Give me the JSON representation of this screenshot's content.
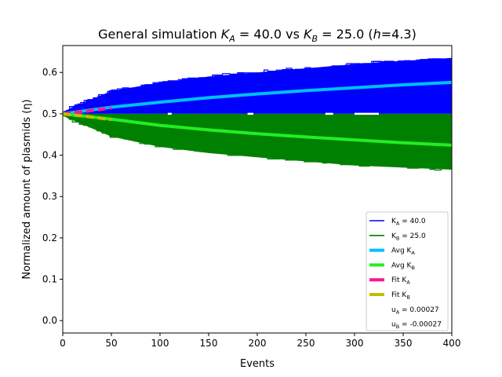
{
  "chart_data": {
    "type": "line",
    "title": "General simulation K_A = 40.0 vs K_B = 25.0 (h=4.3)",
    "title_parts": {
      "prefix": "General simulation ",
      "ka_label": "K",
      "ka_sub": "A",
      "ka_value": " = 40.0 vs ",
      "kb_label": "K",
      "kb_sub": "B",
      "kb_value": " = 25.0 (",
      "h_label": "h",
      "h_value": "=4.3)"
    },
    "xlabel": "Events",
    "ylabel": "Normalized amount of plasmids (η)",
    "xlim": [
      0,
      400
    ],
    "ylim": [
      -0.03,
      0.665
    ],
    "xticks": [
      0,
      50,
      100,
      150,
      200,
      250,
      300,
      350,
      400
    ],
    "yticks": [
      0.0,
      0.1,
      0.2,
      0.3,
      0.4,
      0.5,
      0.6
    ],
    "ytick_labels": [
      "0.0",
      "0.1",
      "0.2",
      "0.3",
      "0.4",
      "0.5",
      "0.6"
    ],
    "grid": false,
    "legend_position": "lower-right",
    "colors": {
      "ka_traces": "#0000ff",
      "kb_traces": "#008000",
      "avg_ka": "#00bfff",
      "avg_kb": "#22ee22",
      "fit_ka": "#ff1493",
      "fit_kb": "#bfbf00"
    },
    "series": [
      {
        "name": "K_A = 40.0",
        "kind": "trace-band",
        "x": [
          0,
          50,
          100,
          150,
          200,
          250,
          300,
          350,
          400
        ],
        "upper": [
          0.505,
          0.555,
          0.575,
          0.59,
          0.6,
          0.61,
          0.62,
          0.628,
          0.635
        ],
        "lower": [
          0.5,
          0.5,
          0.5,
          0.5,
          0.5,
          0.5,
          0.5,
          0.5,
          0.5
        ]
      },
      {
        "name": "K_B = 25.0",
        "kind": "trace-band",
        "x": [
          0,
          50,
          100,
          150,
          200,
          250,
          300,
          350,
          400
        ],
        "upper": [
          0.5,
          0.5,
          0.5,
          0.5,
          0.5,
          0.5,
          0.5,
          0.5,
          0.5
        ],
        "lower": [
          0.495,
          0.445,
          0.42,
          0.405,
          0.395,
          0.385,
          0.375,
          0.37,
          0.365
        ]
      },
      {
        "name": "Avg K_A",
        "kind": "line",
        "x": [
          0,
          50,
          100,
          150,
          200,
          250,
          300,
          350,
          400
        ],
        "values": [
          0.5,
          0.516,
          0.528,
          0.539,
          0.548,
          0.556,
          0.563,
          0.57,
          0.576
        ]
      },
      {
        "name": "Avg K_B",
        "kind": "line",
        "x": [
          0,
          50,
          100,
          150,
          200,
          250,
          300,
          350,
          400
        ],
        "values": [
          0.5,
          0.487,
          0.472,
          0.461,
          0.452,
          0.444,
          0.437,
          0.43,
          0.424
        ]
      },
      {
        "name": "Fit K_A",
        "kind": "dashed",
        "x": [
          0,
          10,
          20,
          30,
          40,
          50
        ],
        "values": [
          0.5,
          0.503,
          0.505,
          0.508,
          0.511,
          0.514
        ]
      },
      {
        "name": "Fit K_B",
        "kind": "dashed",
        "x": [
          0,
          10,
          20,
          30,
          40,
          50
        ],
        "values": [
          0.5,
          0.497,
          0.495,
          0.492,
          0.489,
          0.486
        ]
      }
    ],
    "legend": [
      {
        "key": "ka",
        "label_main": "K",
        "label_sub": "A",
        "label_rest": " = 40.0",
        "style": "thin",
        "color": "#0000ff"
      },
      {
        "key": "kb",
        "label_main": "K",
        "label_sub": "B",
        "label_rest": " = 25.0",
        "style": "thin",
        "color": "#008000"
      },
      {
        "key": "avg_ka",
        "label_main": "Avg K",
        "label_sub": "A",
        "label_rest": "",
        "style": "thick",
        "color": "#00bfff"
      },
      {
        "key": "avg_kb",
        "label_main": "Avg K",
        "label_sub": "B",
        "label_rest": "",
        "style": "thick",
        "color": "#22ee22"
      },
      {
        "key": "fit_ka",
        "label_main": "Fit K",
        "label_sub": "A",
        "label_rest": "",
        "style": "thick",
        "color": "#ff1493"
      },
      {
        "key": "fit_kb",
        "label_main": "Fit K",
        "label_sub": "B",
        "label_rest": "",
        "style": "thick",
        "color": "#bfbf00"
      },
      {
        "key": "ua",
        "label_main": "u",
        "label_sub": "A",
        "label_rest": " = 0.00027",
        "style": "none",
        "color": ""
      },
      {
        "key": "ub",
        "label_main": "u",
        "label_sub": "B",
        "label_rest": " = -0.00027",
        "style": "none",
        "color": ""
      }
    ]
  }
}
